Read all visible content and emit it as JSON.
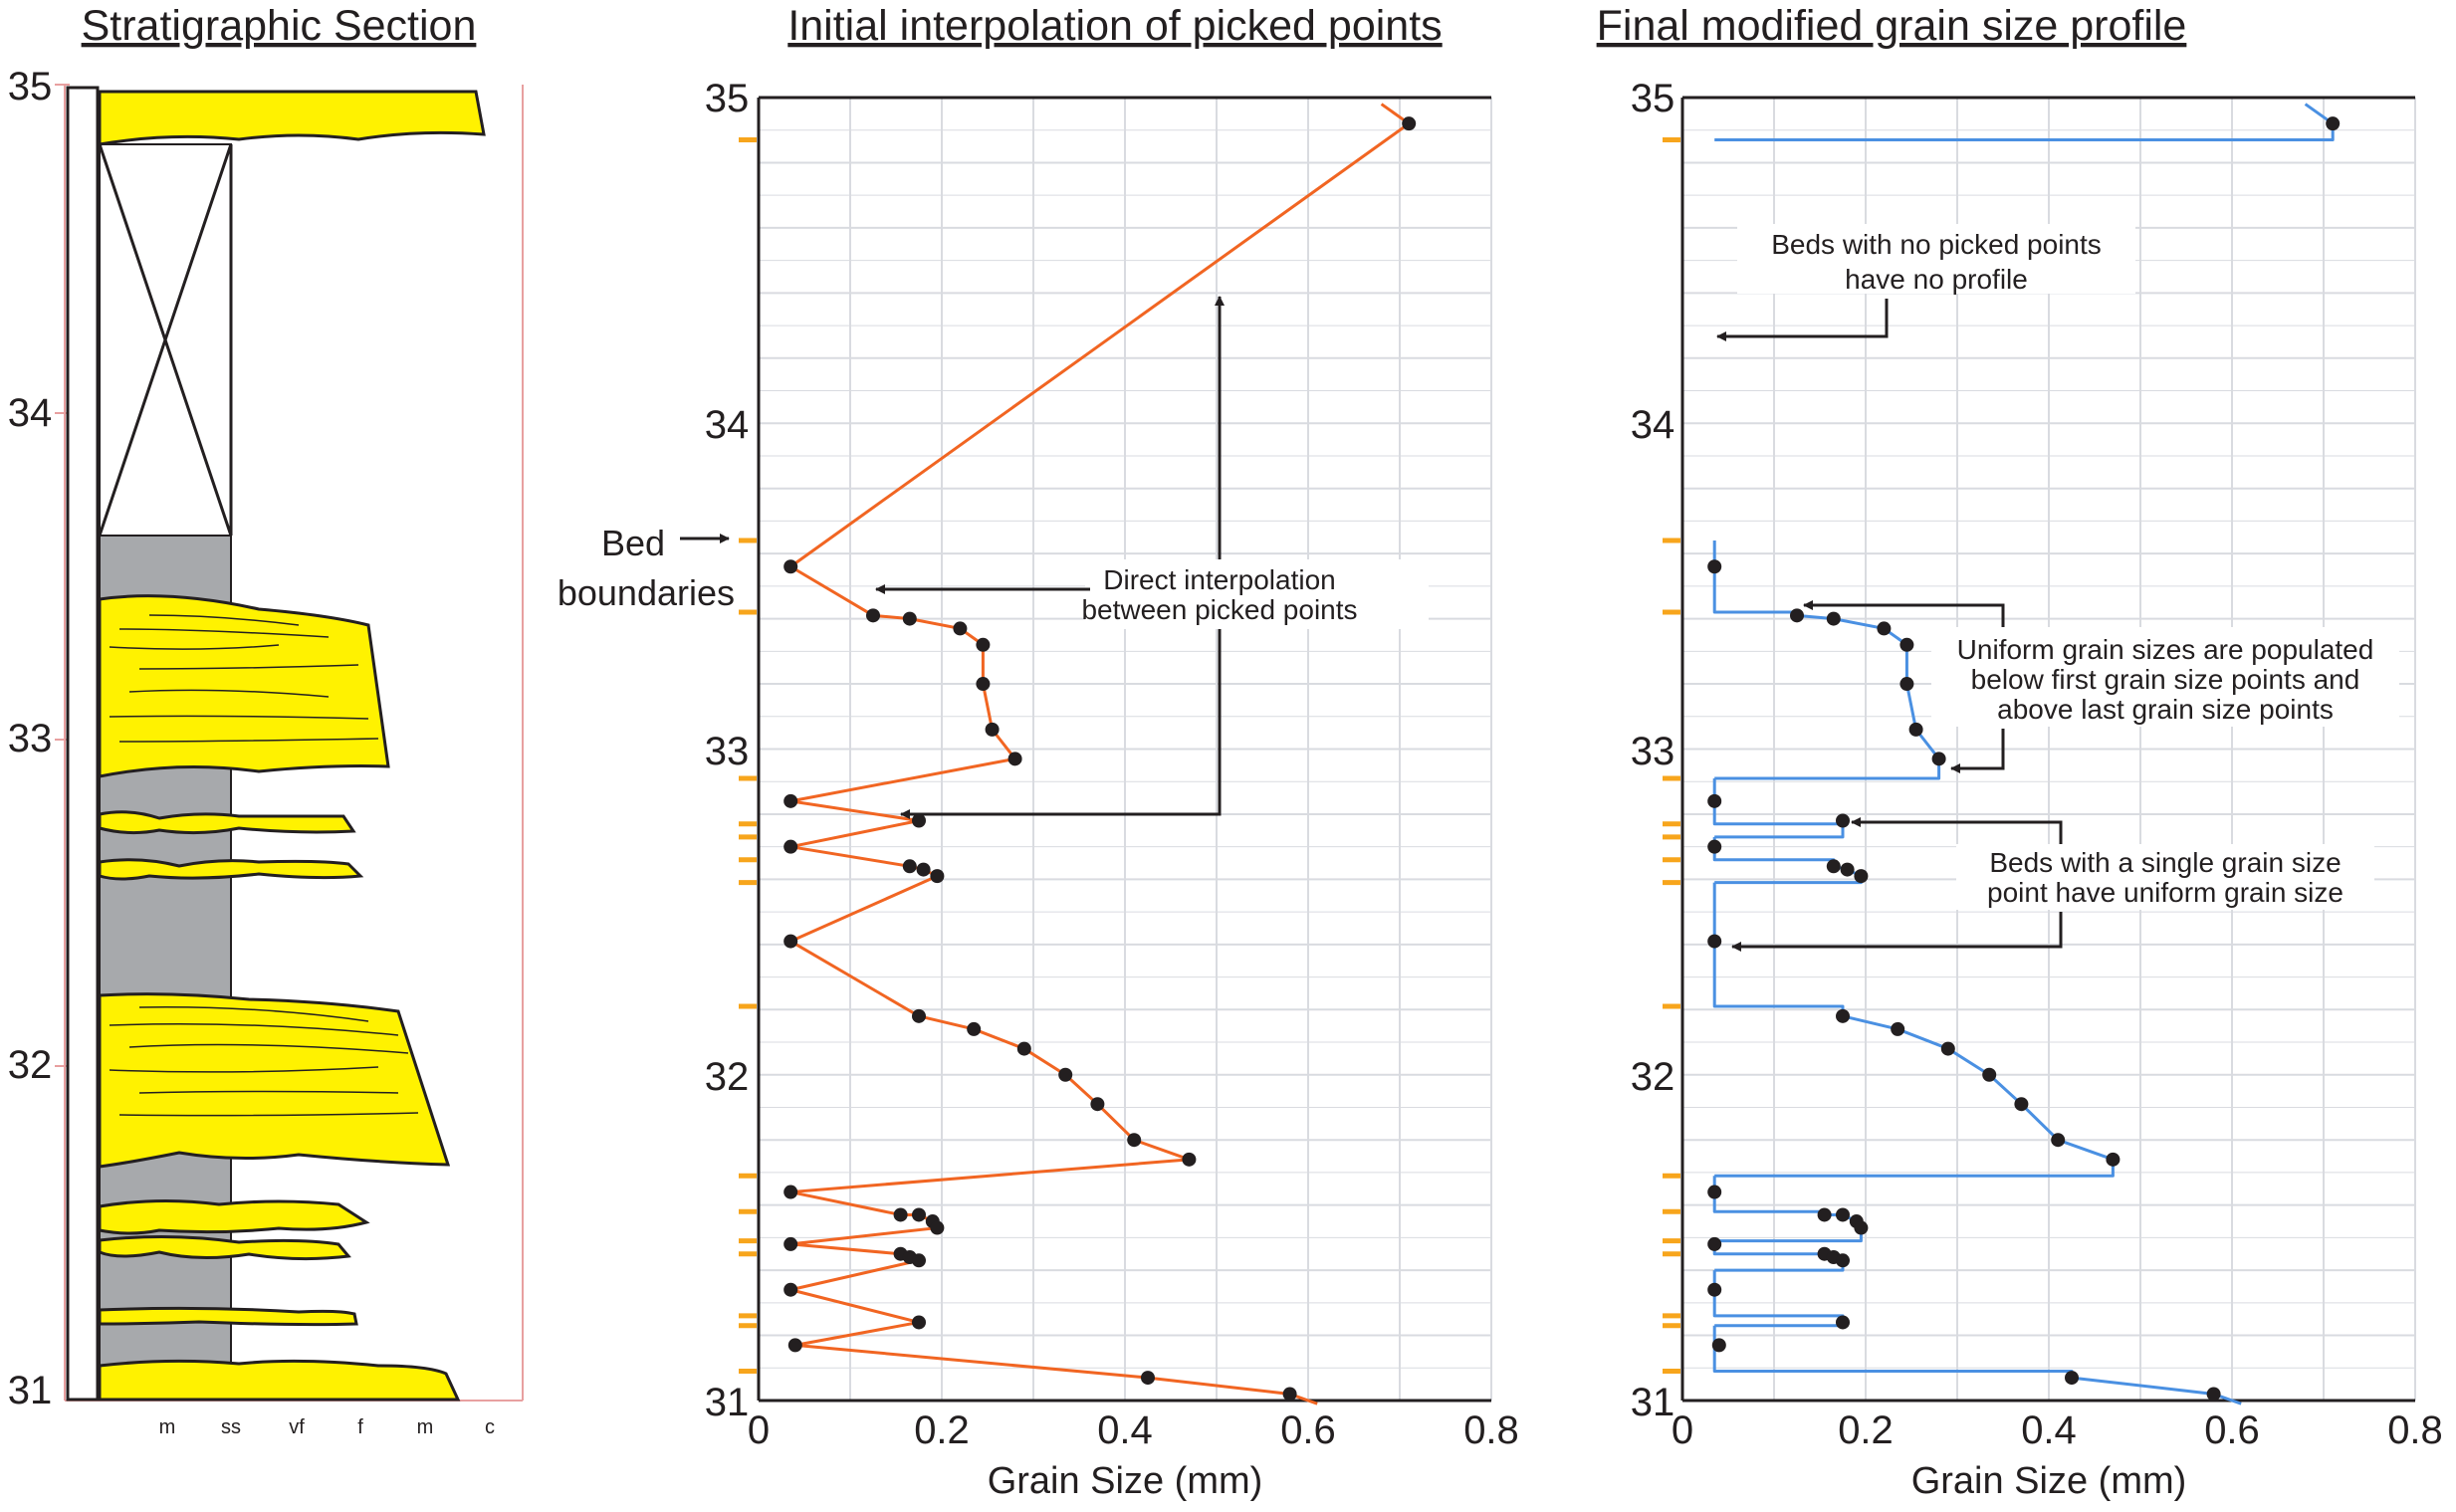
{
  "strat": {
    "title": "Stratigraphic Section",
    "ticks": [
      "35",
      "34",
      "33",
      "32",
      "31"
    ],
    "grain_labels": [
      "m",
      "ss",
      "vf",
      "f",
      "m",
      "c"
    ]
  },
  "colors": {
    "sand": "#fff200",
    "mud": "#a7a9ac",
    "initial_line": "#f16522",
    "final_line": "#4a90e2",
    "bed_marker": "#f7a51c",
    "axis_red": "#e8a0a0",
    "grid": "#d9dbe0",
    "point": "#231f20"
  },
  "chart_data": [
    {
      "type": "line",
      "title": "Initial interpolation of picked points",
      "xlabel": "Grain Size (mm)",
      "ylabel": "",
      "xlim": [
        0,
        0.8
      ],
      "ylim": [
        31,
        35
      ],
      "xticks": [
        "0",
        "0.2",
        "0.4",
        "0.6",
        "0.8"
      ],
      "yticks": [
        "35",
        "34",
        "33",
        "32",
        "31"
      ],
      "bed_boundaries": [
        34.87,
        33.64,
        33.42,
        32.91,
        32.77,
        32.73,
        32.66,
        32.59,
        32.21,
        31.69,
        31.58,
        31.49,
        31.45,
        31.26,
        31.23,
        31.09
      ],
      "annotations": {
        "bed_label_1": "Bed",
        "bed_label_2": "boundaries",
        "interp_1": "Direct interpolation",
        "interp_2": "between picked points"
      },
      "series": [
        {
          "x": [
            0.68,
            0.71,
            0.035,
            0.125,
            0.165,
            0.22,
            0.245,
            0.245,
            0.255,
            0.28,
            0.035,
            0.175,
            0.035,
            0.165,
            0.18,
            0.195,
            0.035,
            0.175,
            0.235,
            0.29,
            0.335,
            0.37,
            0.41,
            0.47,
            0.035,
            0.155,
            0.175,
            0.19,
            0.195,
            0.035,
            0.155,
            0.165,
            0.175,
            0.035,
            0.175,
            0.04,
            0.425,
            0.58,
            0.61
          ],
          "y": [
            34.98,
            34.92,
            33.56,
            33.41,
            33.4,
            33.37,
            33.32,
            33.2,
            33.06,
            32.97,
            32.84,
            32.78,
            32.7,
            32.64,
            32.63,
            32.61,
            32.41,
            32.18,
            32.14,
            32.08,
            32.0,
            31.91,
            31.8,
            31.74,
            31.64,
            31.57,
            31.57,
            31.55,
            31.53,
            31.48,
            31.45,
            31.44,
            31.43,
            31.34,
            31.24,
            31.17,
            31.07,
            31.02,
            30.99
          ],
          "picked_points": [
            [
              0.71,
              34.92
            ],
            [
              0.035,
              33.56
            ],
            [
              0.125,
              33.41
            ],
            [
              0.165,
              33.4
            ],
            [
              0.22,
              33.37
            ],
            [
              0.245,
              33.32
            ],
            [
              0.245,
              33.2
            ],
            [
              0.255,
              33.06
            ],
            [
              0.28,
              32.97
            ],
            [
              0.035,
              32.84
            ],
            [
              0.175,
              32.78
            ],
            [
              0.035,
              32.7
            ],
            [
              0.165,
              32.64
            ],
            [
              0.18,
              32.63
            ],
            [
              0.195,
              32.61
            ],
            [
              0.035,
              32.41
            ],
            [
              0.175,
              32.18
            ],
            [
              0.235,
              32.14
            ],
            [
              0.29,
              32.08
            ],
            [
              0.335,
              32.0
            ],
            [
              0.37,
              31.91
            ],
            [
              0.41,
              31.8
            ],
            [
              0.47,
              31.74
            ],
            [
              0.035,
              31.64
            ],
            [
              0.155,
              31.57
            ],
            [
              0.175,
              31.57
            ],
            [
              0.19,
              31.55
            ],
            [
              0.195,
              31.53
            ],
            [
              0.035,
              31.48
            ],
            [
              0.155,
              31.45
            ],
            [
              0.165,
              31.44
            ],
            [
              0.175,
              31.43
            ],
            [
              0.035,
              31.34
            ],
            [
              0.175,
              31.24
            ],
            [
              0.04,
              31.17
            ],
            [
              0.425,
              31.07
            ],
            [
              0.58,
              31.02
            ]
          ]
        }
      ]
    },
    {
      "type": "line",
      "title": "Final modified grain size profile",
      "xlabel": "Grain Size (mm)",
      "ylabel": "",
      "xlim": [
        0,
        0.8
      ],
      "ylim": [
        31,
        35
      ],
      "xticks": [
        "0",
        "0.2",
        "0.4",
        "0.6",
        "0.8"
      ],
      "yticks": [
        "35",
        "34",
        "33",
        "32",
        "31"
      ],
      "annotations": {
        "noprof_1": "Beds with no picked points",
        "noprof_2": "have no profile",
        "uniform_1": "Uniform grain sizes are populated",
        "uniform_2": "below first grain size points and",
        "uniform_3": "above last grain size points",
        "single_1": "Beds with a single grain size",
        "single_2": "point have uniform grain size"
      },
      "series": [
        {
          "segments": [
            [
              [
                0.68,
                34.98
              ],
              [
                0.71,
                34.92
              ],
              [
                0.71,
                34.87
              ],
              [
                0.035,
                34.87
              ]
            ],
            [
              [
                0.035,
                33.64
              ],
              [
                0.035,
                33.42
              ],
              [
                0.125,
                33.42
              ],
              [
                0.125,
                33.41
              ],
              [
                0.165,
                33.4
              ],
              [
                0.22,
                33.37
              ],
              [
                0.245,
                33.32
              ],
              [
                0.245,
                33.2
              ],
              [
                0.255,
                33.06
              ],
              [
                0.28,
                32.97
              ],
              [
                0.28,
                32.91
              ],
              [
                0.035,
                32.91
              ]
            ],
            [
              [
                0.035,
                32.91
              ],
              [
                0.035,
                32.77
              ],
              [
                0.175,
                32.77
              ],
              [
                0.175,
                32.73
              ],
              [
                0.035,
                32.73
              ]
            ],
            [
              [
                0.035,
                32.73
              ],
              [
                0.035,
                32.66
              ],
              [
                0.165,
                32.66
              ],
              [
                0.165,
                32.64
              ],
              [
                0.18,
                32.63
              ],
              [
                0.195,
                32.61
              ],
              [
                0.195,
                32.59
              ],
              [
                0.035,
                32.59
              ]
            ],
            [
              [
                0.035,
                32.59
              ],
              [
                0.035,
                32.21
              ],
              [
                0.175,
                32.21
              ],
              [
                0.175,
                32.18
              ],
              [
                0.235,
                32.14
              ],
              [
                0.29,
                32.08
              ],
              [
                0.335,
                32.0
              ],
              [
                0.37,
                31.91
              ],
              [
                0.41,
                31.8
              ],
              [
                0.47,
                31.74
              ],
              [
                0.47,
                31.69
              ],
              [
                0.035,
                31.69
              ]
            ],
            [
              [
                0.035,
                31.69
              ],
              [
                0.035,
                31.58
              ],
              [
                0.155,
                31.58
              ],
              [
                0.155,
                31.57
              ],
              [
                0.175,
                31.57
              ],
              [
                0.19,
                31.55
              ],
              [
                0.195,
                31.53
              ],
              [
                0.195,
                31.49
              ],
              [
                0.035,
                31.49
              ]
            ],
            [
              [
                0.035,
                31.49
              ],
              [
                0.035,
                31.45
              ],
              [
                0.155,
                31.45
              ],
              [
                0.165,
                31.44
              ],
              [
                0.175,
                31.43
              ],
              [
                0.175,
                31.4
              ],
              [
                0.035,
                31.4
              ]
            ],
            [
              [
                0.035,
                31.4
              ],
              [
                0.035,
                31.26
              ],
              [
                0.175,
                31.26
              ],
              [
                0.175,
                31.23
              ],
              [
                0.035,
                31.23
              ]
            ],
            [
              [
                0.035,
                31.23
              ],
              [
                0.035,
                31.09
              ],
              [
                0.425,
                31.09
              ],
              [
                0.425,
                31.07
              ],
              [
                0.58,
                31.02
              ],
              [
                0.61,
                30.99
              ]
            ]
          ],
          "picked_points": [
            [
              0.71,
              34.92
            ],
            [
              0.035,
              33.56
            ],
            [
              0.125,
              33.41
            ],
            [
              0.165,
              33.4
            ],
            [
              0.22,
              33.37
            ],
            [
              0.245,
              33.32
            ],
            [
              0.245,
              33.2
            ],
            [
              0.255,
              33.06
            ],
            [
              0.28,
              32.97
            ],
            [
              0.035,
              32.84
            ],
            [
              0.175,
              32.78
            ],
            [
              0.035,
              32.7
            ],
            [
              0.165,
              32.64
            ],
            [
              0.18,
              32.63
            ],
            [
              0.195,
              32.61
            ],
            [
              0.035,
              32.41
            ],
            [
              0.175,
              32.18
            ],
            [
              0.235,
              32.14
            ],
            [
              0.29,
              32.08
            ],
            [
              0.335,
              32.0
            ],
            [
              0.37,
              31.91
            ],
            [
              0.41,
              31.8
            ],
            [
              0.47,
              31.74
            ],
            [
              0.035,
              31.64
            ],
            [
              0.155,
              31.57
            ],
            [
              0.175,
              31.57
            ],
            [
              0.19,
              31.55
            ],
            [
              0.195,
              31.53
            ],
            [
              0.035,
              31.48
            ],
            [
              0.155,
              31.45
            ],
            [
              0.165,
              31.44
            ],
            [
              0.175,
              31.43
            ],
            [
              0.035,
              31.34
            ],
            [
              0.175,
              31.24
            ],
            [
              0.04,
              31.17
            ],
            [
              0.425,
              31.07
            ],
            [
              0.58,
              31.02
            ]
          ]
        }
      ]
    }
  ]
}
